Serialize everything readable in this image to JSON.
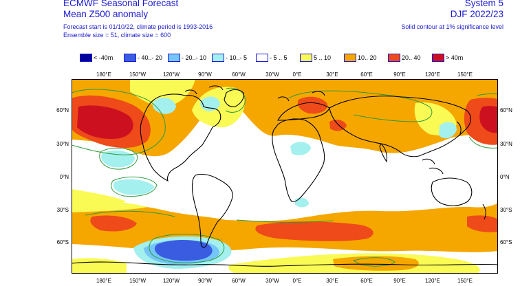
{
  "header": {
    "title": "ECMWF Seasonal Forecast",
    "subtitle": "Mean Z500 anomaly",
    "forecast_info": "Forecast start is 01/10/22, climate period is 1993-2016",
    "ensemble_info": "Ensemble size = 51, climate size = 600",
    "system": "System 5",
    "period": "DJF 2022/23",
    "significance_note": "Solid contour at 1% significance level"
  },
  "legend": [
    {
      "label": "< -40m",
      "color": "#00009a"
    },
    {
      "label": "- 40..- 20",
      "color": "#3a5ce0"
    },
    {
      "label": "- 20..- 10",
      "color": "#74c6f8"
    },
    {
      "label": "- 10..- 5",
      "color": "#a3f0ee"
    },
    {
      "label": "- 5 .. 5",
      "color": "#ffffff"
    },
    {
      "label": "5 .. 10",
      "color": "#fafa55"
    },
    {
      "label": "10.. 20",
      "color": "#f5a700"
    },
    {
      "label": "20.. 40",
      "color": "#ee4a1a"
    },
    {
      "label": "> 40m",
      "color": "#cc1020"
    }
  ],
  "longitude_labels": [
    "180°E",
    "150°W",
    "120°W",
    "90°W",
    "60°W",
    "30°W",
    "0°E",
    "30°E",
    "60°E",
    "90°E",
    "120°E",
    "150°E"
  ],
  "latitude_labels": [
    "60°N",
    "30°N",
    "0°N",
    "30°S",
    "60°S"
  ],
  "map_colors": {
    "land_outline": "#000000",
    "significance_contour": "#2e9a3a"
  }
}
